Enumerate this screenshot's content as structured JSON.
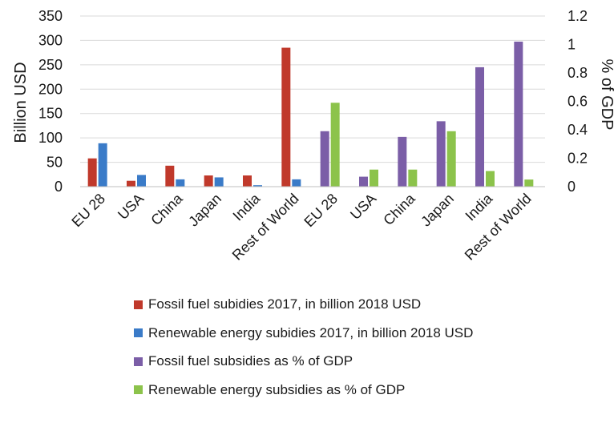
{
  "chart_data": {
    "type": "bar",
    "title": "",
    "y_left": {
      "label": "Billion USD",
      "lim": [
        0,
        350
      ],
      "ticks": [
        "0",
        "50",
        "100",
        "150",
        "200",
        "250",
        "300",
        "350"
      ]
    },
    "y_right": {
      "label": "% of GDP",
      "lim": [
        0,
        1.2
      ],
      "ticks": [
        "0",
        "0.2",
        "0.4",
        "0.6",
        "0.8",
        "1",
        "1.2"
      ]
    },
    "categories": [
      "EU 28",
      "USA",
      "China",
      "Japan",
      "India",
      "Rest of World",
      "EU 28",
      "USA",
      "China",
      "Japan",
      "India",
      "Rest of World"
    ],
    "grid": true,
    "legend_position": "bottom",
    "series": [
      {
        "name": "Fossil fuel subidies 2017, in billion 2018 USD",
        "axis": "left",
        "color": "#c0392b",
        "values": [
          58,
          12,
          43,
          23,
          23,
          285,
          null,
          null,
          null,
          null,
          null,
          null
        ]
      },
      {
        "name": "Renewable energy subidies 2017, in billion 2018 USD",
        "axis": "left",
        "color": "#3a7bc8",
        "values": [
          89,
          24,
          15,
          19,
          3,
          15,
          null,
          null,
          null,
          null,
          null,
          null
        ]
      },
      {
        "name": "Fossil fuel subsidies as % of GDP",
        "axis": "right",
        "color": "#7b5ea7",
        "values": [
          null,
          null,
          null,
          null,
          null,
          null,
          0.39,
          0.07,
          0.35,
          0.46,
          0.84,
          1.02
        ]
      },
      {
        "name": "Renewable energy subsidies as % of GDP",
        "axis": "right",
        "color": "#8cc34b",
        "values": [
          null,
          null,
          null,
          null,
          null,
          null,
          0.59,
          0.12,
          0.12,
          0.39,
          0.11,
          0.05
        ]
      }
    ]
  }
}
